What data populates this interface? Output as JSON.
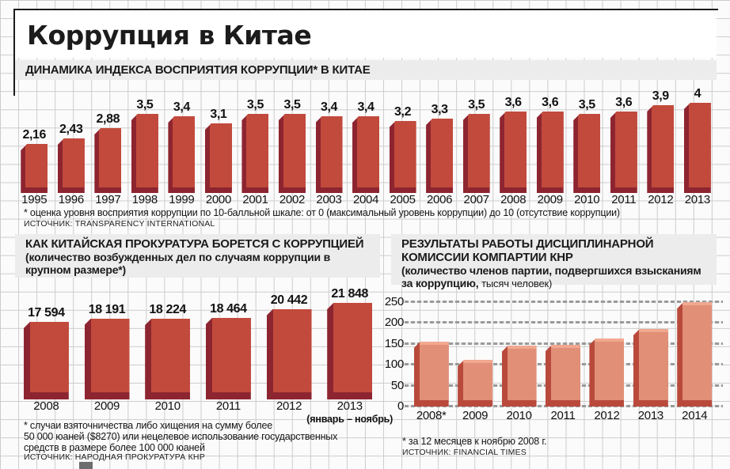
{
  "title": "Коррупция в Китае",
  "colors": {
    "bar_red_fill": "#c24a3c",
    "bar_red_edge": "#8d2530",
    "bar_salmon_fill": "#e28f77",
    "bar_salmon_edge": "#b94a3b",
    "header_band": "#ececec",
    "grid_line": "#cccccc",
    "rule_black": "#1b1b1b"
  },
  "chart_data": [
    {
      "id": "cpi",
      "type": "bar",
      "title": "ДИНАМИКА ИНДЕКСА ВОСПРИЯТИЯ КОРРУПЦИИ* В КИТАЕ",
      "categories": [
        "1995",
        "1996",
        "1997",
        "1998",
        "1999",
        "2000",
        "2001",
        "2002",
        "2003",
        "2004",
        "2005",
        "2006",
        "2007",
        "2008",
        "2009",
        "2010",
        "2011",
        "2012",
        "2013"
      ],
      "values": [
        2.16,
        2.43,
        2.88,
        3.5,
        3.4,
        3.1,
        3.5,
        3.5,
        3.4,
        3.4,
        3.2,
        3.3,
        3.5,
        3.6,
        3.6,
        3.5,
        3.6,
        3.9,
        4
      ],
      "value_labels": [
        "2,16",
        "2,43",
        "2,88",
        "3,5",
        "3,4",
        "3,1",
        "3,5",
        "3,5",
        "3,4",
        "3,4",
        "3,2",
        "3,3",
        "3,5",
        "3,6",
        "3,6",
        "3,5",
        "3,6",
        "3,9",
        "4"
      ],
      "ylim": [
        0,
        4
      ],
      "grid": true,
      "legend": "none",
      "footnote": "* оценка уровня восприятия коррупции по 10-балльной шкале: от 0 (максимальный уровень коррупции) до 10 (отсутствие коррупции)",
      "source": "ИСТОЧНИК: TRANSPARENCY INTERNATIONAL"
    },
    {
      "id": "prosecutions",
      "type": "bar",
      "title": "КАК КИТАЙСКАЯ ПРОКУРАТУРА БОРЕТСЯ С КОРРУПЦИЕЙ",
      "subtitle": "(количество возбужденных дел по случаям коррупции в крупном размере*)",
      "categories": [
        "2008",
        "2009",
        "2010",
        "2011",
        "2012",
        "2013"
      ],
      "last_category_note": "(январь – ноябрь)",
      "values": [
        17594,
        18191,
        18224,
        18464,
        20442,
        21848
      ],
      "value_labels": [
        "17 594",
        "18 191",
        "18 224",
        "18 464",
        "20 442",
        "21 848"
      ],
      "ylim": [
        0,
        21848
      ],
      "grid": true,
      "legend": "none",
      "footnote_lines": [
        "* случаи взяточничества либо хищения на сумму более",
        "50 000 юаней ($8270) или нецелевое использование государственных",
        "средств в размере более 100 000 юаней"
      ],
      "source": "ИСТОЧНИК: НАРОДНАЯ ПРОКУРАТУРА КНР"
    },
    {
      "id": "party",
      "type": "bar",
      "title": "РЕЗУЛЬТАТЫ РАБОТЫ ДИСЦИПЛИНАРНОЙ КОМИССИИ КОМПАРТИИ КНР",
      "subtitle_main": "(количество членов партии, подвергшихся взысканиям за коррупцию,",
      "subtitle_note": "тысяч человек)",
      "categories": [
        "2008*",
        "2009",
        "2010",
        "2011",
        "2012",
        "2013",
        "2014"
      ],
      "values": [
        155,
        112,
        145,
        147,
        162,
        185,
        250
      ],
      "ylim": [
        0,
        250
      ],
      "yticks": [
        0,
        50,
        100,
        150,
        200,
        250
      ],
      "grid": true,
      "legend": "none",
      "footnote": "* за 12 месяцев к ноябрю 2008 г.",
      "source": "ИСТОЧНИК: FINANCIAL TIMES"
    }
  ]
}
